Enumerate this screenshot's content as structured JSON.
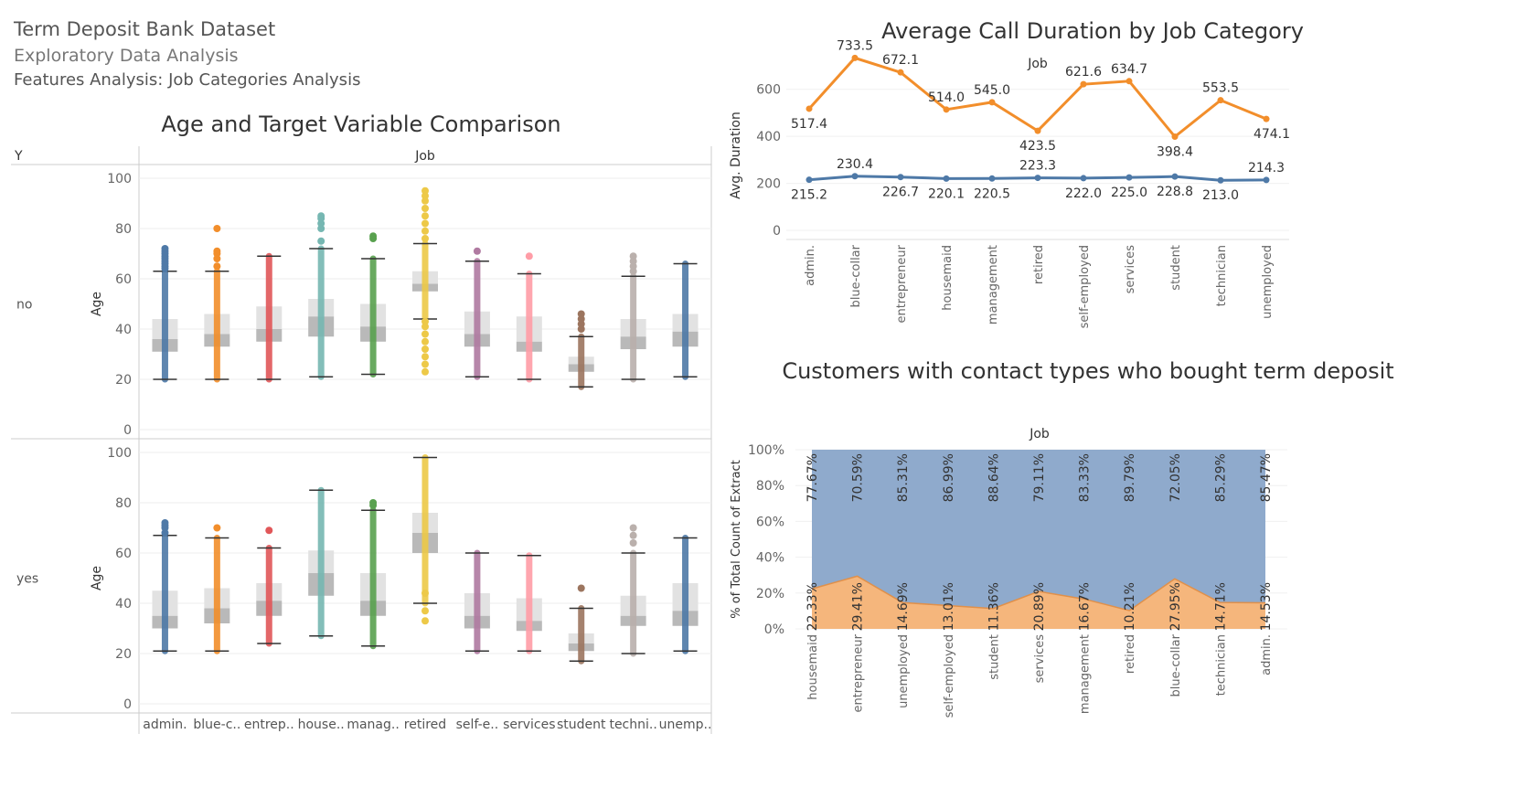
{
  "header": {
    "title": "Term Deposit Bank Dataset",
    "subtitle": "Exploratory Data Analysis",
    "section": "Features Analysis: Job Categories Analysis"
  },
  "colors": {
    "admin.": "#4e79a7",
    "blue-collar": "#f28e2b",
    "entrepreneur": "#e15759",
    "housemaid": "#76b7b2",
    "management": "#59a14f",
    "retired": "#edc948",
    "self-employed": "#b07aa1",
    "services": "#ff9da7",
    "student": "#9c755f",
    "technician": "#bab0ac",
    "unemployed": "#4e79a7",
    "line_high": "#f28e2b",
    "line_low": "#4e79a7",
    "area_top": "#8faacc",
    "area_bottom": "#f5b67c"
  },
  "chart_data": [
    {
      "type": "boxplot",
      "title": "Age and Target Variable Comparison",
      "column_header": "Job",
      "row_header": "Y",
      "ylabel": "Age",
      "ylim": [
        0,
        100
      ],
      "yticks": [
        0,
        20,
        40,
        60,
        80,
        100
      ],
      "categories": [
        "admin.",
        "blue-collar",
        "entrepreneur",
        "housemaid",
        "management",
        "retired",
        "self-employed",
        "services",
        "student",
        "technician",
        "unemployed"
      ],
      "category_labels": [
        "admin.",
        "blue-c..",
        "entrep..",
        "house..",
        "manag..",
        "retired",
        "self-e..",
        "services",
        "student",
        "techni..",
        "unemp.."
      ],
      "panels": [
        {
          "name": "no",
          "boxes": [
            {
              "lw": 20,
              "q1": 31,
              "med": 36,
              "q3": 44,
              "uw": 63,
              "outliers": [
                64,
                65,
                66,
                67,
                68,
                69,
                70,
                71,
                72
              ]
            },
            {
              "lw": 20,
              "q1": 33,
              "med": 38,
              "q3": 46,
              "uw": 63,
              "outliers": [
                65,
                68,
                70,
                71,
                80
              ]
            },
            {
              "lw": 20,
              "q1": 35,
              "med": 40,
              "q3": 49,
              "uw": 69,
              "outliers": []
            },
            {
              "lw": 21,
              "q1": 37,
              "med": 45,
              "q3": 52,
              "uw": 72,
              "outliers": [
                75,
                80,
                82,
                84,
                85
              ]
            },
            {
              "lw": 22,
              "q1": 35,
              "med": 41,
              "q3": 50,
              "uw": 68,
              "outliers": [
                76,
                77
              ]
            },
            {
              "lw": 44,
              "q1": 55,
              "med": 58,
              "q3": 63,
              "uw": 74,
              "outliers": [
                23,
                26,
                29,
                32,
                35,
                38,
                41,
                43,
                76,
                79,
                82,
                85,
                88,
                91,
                93,
                95
              ]
            },
            {
              "lw": 21,
              "q1": 33,
              "med": 38,
              "q3": 47,
              "uw": 67,
              "outliers": [
                71
              ]
            },
            {
              "lw": 20,
              "q1": 31,
              "med": 35,
              "q3": 45,
              "uw": 62,
              "outliers": [
                69
              ]
            },
            {
              "lw": 17,
              "q1": 23,
              "med": 26,
              "q3": 29,
              "uw": 37,
              "outliers": [
                40,
                42,
                44,
                46
              ]
            },
            {
              "lw": 20,
              "q1": 32,
              "med": 37,
              "q3": 44,
              "uw": 61,
              "outliers": [
                63,
                65,
                67,
                69
              ]
            },
            {
              "lw": 21,
              "q1": 33,
              "med": 39,
              "q3": 46,
              "uw": 66,
              "outliers": []
            }
          ]
        },
        {
          "name": "yes",
          "boxes": [
            {
              "lw": 21,
              "q1": 30,
              "med": 35,
              "q3": 45,
              "uw": 67,
              "outliers": [
                68,
                70,
                71,
                72
              ]
            },
            {
              "lw": 21,
              "q1": 32,
              "med": 38,
              "q3": 46,
              "uw": 66,
              "outliers": [
                70
              ]
            },
            {
              "lw": 24,
              "q1": 35,
              "med": 41,
              "q3": 48,
              "uw": 62,
              "outliers": [
                69
              ]
            },
            {
              "lw": 27,
              "q1": 43,
              "med": 52,
              "q3": 61,
              "uw": 85,
              "outliers": []
            },
            {
              "lw": 23,
              "q1": 35,
              "med": 41,
              "q3": 52,
              "uw": 77,
              "outliers": [
                79,
                80
              ]
            },
            {
              "lw": 40,
              "q1": 60,
              "med": 68,
              "q3": 76,
              "uw": 98,
              "outliers": [
                33,
                37,
                44
              ]
            },
            {
              "lw": 21,
              "q1": 30,
              "med": 35,
              "q3": 44,
              "uw": 60,
              "outliers": []
            },
            {
              "lw": 21,
              "q1": 29,
              "med": 33,
              "q3": 42,
              "uw": 59,
              "outliers": []
            },
            {
              "lw": 17,
              "q1": 21,
              "med": 24,
              "q3": 28,
              "uw": 38,
              "outliers": [
                46
              ]
            },
            {
              "lw": 20,
              "q1": 31,
              "med": 35,
              "q3": 43,
              "uw": 60,
              "outliers": [
                64,
                67,
                70
              ]
            },
            {
              "lw": 21,
              "q1": 31,
              "med": 37,
              "q3": 48,
              "uw": 66,
              "outliers": []
            }
          ]
        }
      ]
    },
    {
      "type": "line",
      "title": "Average Call Duration by Job Category",
      "column_header": "Job",
      "ylabel": "Avg. Duration",
      "ylim": [
        0,
        700
      ],
      "yticks": [
        0,
        200,
        400,
        600
      ],
      "categories": [
        "admin.",
        "blue-collar",
        "entrepreneur",
        "housemaid",
        "management",
        "retired",
        "self-employed",
        "services",
        "student",
        "technician",
        "unemployed"
      ],
      "series": [
        {
          "values": [
            517.4,
            733.5,
            672.1,
            514.0,
            545.0,
            423.5,
            621.6,
            634.7,
            398.4,
            553.5,
            474.1
          ],
          "labels": [
            "517.4",
            "733.5",
            "672.1",
            "514.0",
            "545.0",
            "423.5",
            "621.6",
            "634.7",
            "398.4",
            "553.5",
            "474.1"
          ]
        },
        {
          "values": [
            215.2,
            230.4,
            226.7,
            220.1,
            220.5,
            223.3,
            222.0,
            225.0,
            228.8,
            213.0,
            214.3
          ],
          "labels": [
            "215.2",
            "230.4",
            "226.7",
            "220.1",
            "220.5",
            "223.3",
            "222.0",
            "225.0",
            "228.8",
            "213.0",
            "214.3"
          ]
        }
      ]
    },
    {
      "type": "area",
      "stacked": true,
      "title": "Customers with contact types who bought term deposit",
      "column_header": "Job",
      "ylabel": "% of Total Count of Extract",
      "ylim": [
        0,
        100
      ],
      "yticks": [
        "0%",
        "20%",
        "40%",
        "60%",
        "80%",
        "100%"
      ],
      "categories": [
        "housemaid",
        "entrepreneur",
        "unemployed",
        "self-employed",
        "student",
        "services",
        "management",
        "retired",
        "blue-collar",
        "technician",
        "admin."
      ],
      "series": [
        {
          "values": [
            22.33,
            29.41,
            14.69,
            13.01,
            11.36,
            20.89,
            16.67,
            10.21,
            27.95,
            14.71,
            14.53
          ],
          "labels": [
            "22.33%",
            "29.41%",
            "14.69%",
            "13.01%",
            "11.36%",
            "20.89%",
            "16.67%",
            "10.21%",
            "27.95%",
            "14.71%",
            "14.53%"
          ]
        },
        {
          "values": [
            77.67,
            70.59,
            85.31,
            86.99,
            88.64,
            79.11,
            83.33,
            89.79,
            72.05,
            85.29,
            85.47
          ],
          "labels": [
            "77.67%",
            "70.59%",
            "85.31%",
            "86.99%",
            "88.64%",
            "79.11%",
            "83.33%",
            "89.79%",
            "72.05%",
            "85.29%",
            "85.47%"
          ]
        }
      ]
    }
  ]
}
